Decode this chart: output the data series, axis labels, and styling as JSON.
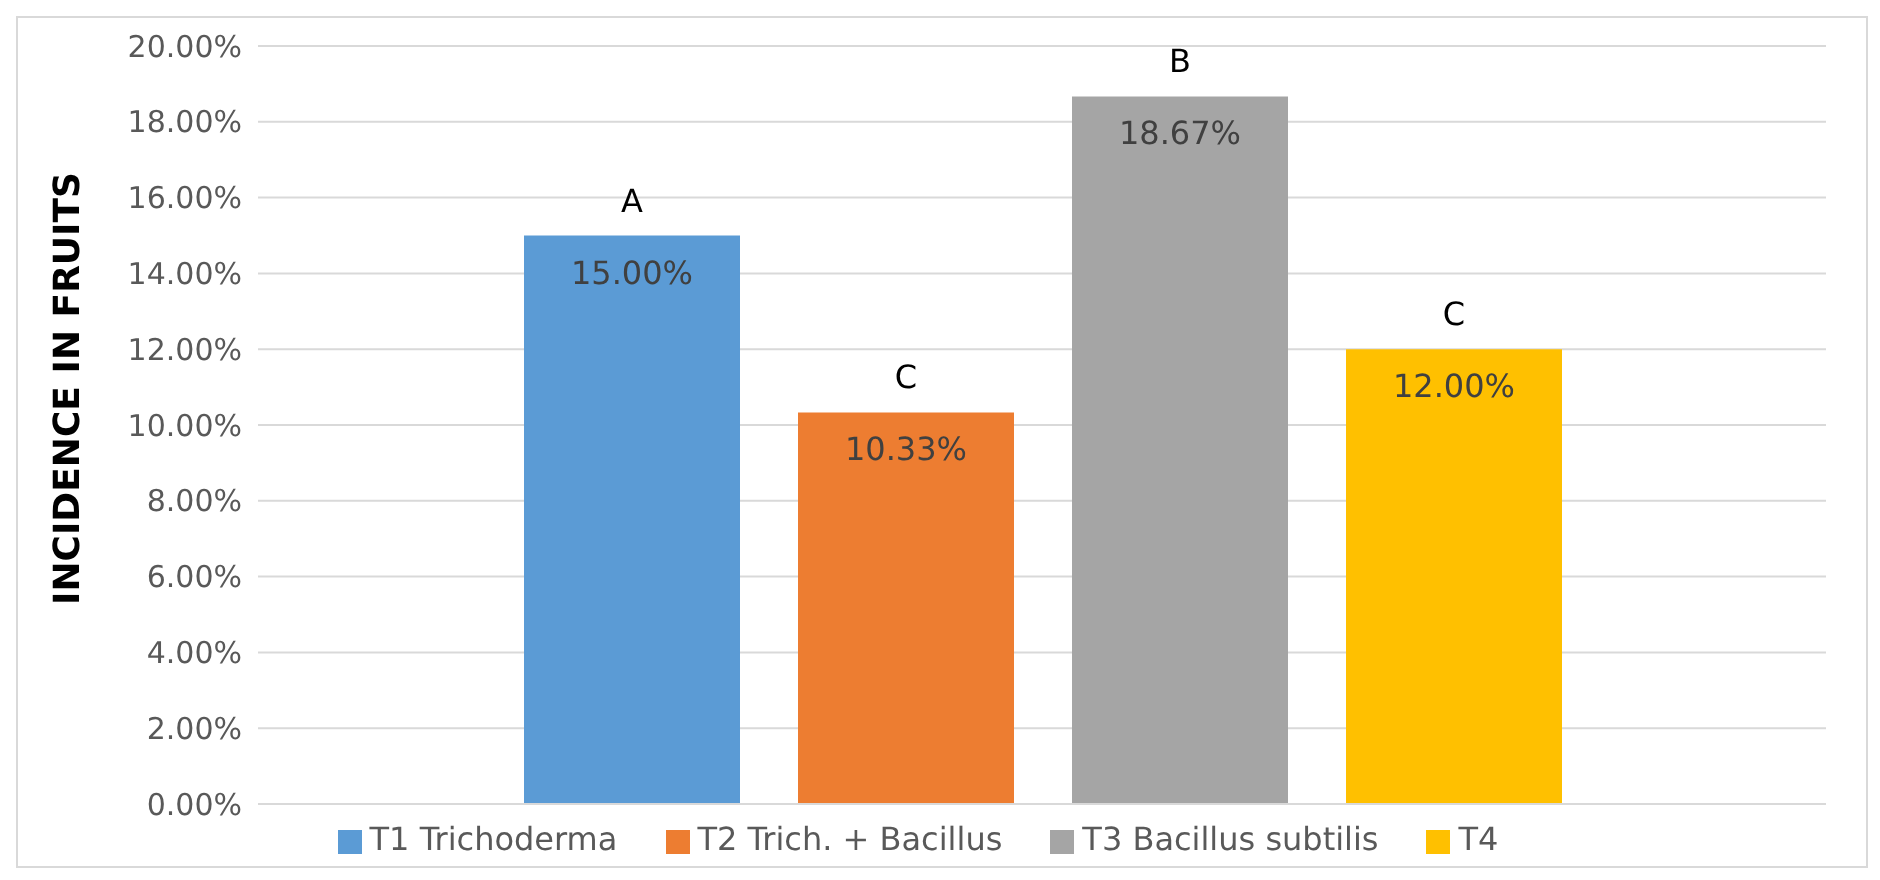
{
  "chart_data": {
    "type": "bar",
    "ylabel": "INCIDENCE IN FRUITS",
    "categories": [
      null
    ],
    "series": [
      {
        "name": "T1 Trichoderma",
        "color": "#5b9bd5",
        "values": [
          15.0
        ],
        "value_labels": [
          "15.00%"
        ]
      },
      {
        "name": "T2 Trich. + Bacillus",
        "color": "#ed7d31",
        "values": [
          10.33
        ],
        "value_labels": [
          "10.33%"
        ]
      },
      {
        "name": "T3 Bacillus subtilis",
        "color": "#a5a5a5",
        "values": [
          18.67
        ],
        "value_labels": [
          "18.67%"
        ]
      },
      {
        "name": "T4",
        "color": "#ffc000",
        "values": [
          12.0
        ],
        "value_labels": [
          "12.00%"
        ]
      }
    ],
    "annotations": [
      {
        "text": "A",
        "y": 15.0
      },
      {
        "text": "C",
        "y": 10.33
      },
      {
        "text": "B",
        "y": 18.67
      },
      {
        "text": "C",
        "y": 12.0
      }
    ],
    "ylim": [
      0,
      20
    ],
    "yticks": [
      {
        "value": 0,
        "label": "0.00%"
      },
      {
        "value": 2,
        "label": "2.00%"
      },
      {
        "value": 4,
        "label": "4.00%"
      },
      {
        "value": 6,
        "label": "6.00%"
      },
      {
        "value": 8,
        "label": "8.00%"
      },
      {
        "value": 10,
        "label": "10.00%"
      },
      {
        "value": 12,
        "label": "12.00%"
      },
      {
        "value": 14,
        "label": "14.00%"
      },
      {
        "value": 16,
        "label": "16.00%"
      },
      {
        "value": 18,
        "label": "18.00%"
      },
      {
        "value": 20,
        "label": "20.00%"
      }
    ],
    "grid": "y",
    "legend": "bottom",
    "tick_labels": "y"
  }
}
